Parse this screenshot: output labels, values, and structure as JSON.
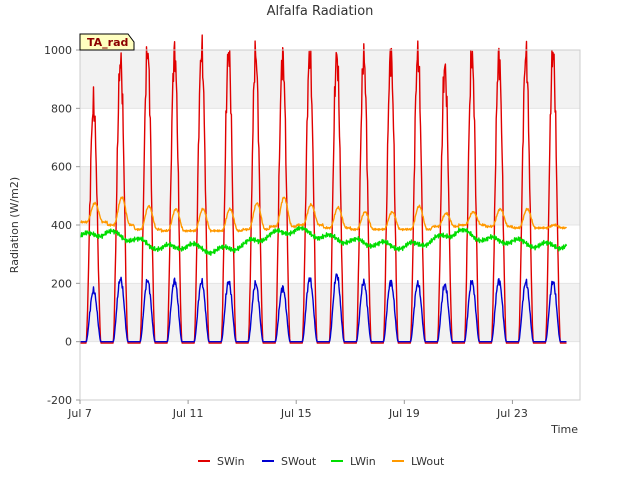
{
  "chart_data": {
    "type": "line",
    "title": "Alfalfa Radiation",
    "xlabel": "Time",
    "ylabel": "Radiation (W/m2)",
    "badge": "TA_rad",
    "xlim": [
      7.0,
      25.5
    ],
    "ylim": [
      -200,
      1000
    ],
    "yticks": [
      -200,
      0,
      200,
      400,
      600,
      800,
      1000
    ],
    "xticks": [
      {
        "day": 7,
        "label": "Jul 7"
      },
      {
        "day": 11,
        "label": "Jul 11"
      },
      {
        "day": 15,
        "label": "Jul 15"
      },
      {
        "day": 19,
        "label": "Jul 19"
      },
      {
        "day": 23,
        "label": "Jul 23"
      }
    ],
    "grid": true,
    "legend_position": "bottom",
    "days": [
      7.5,
      8.5,
      9.5,
      10.5,
      11.5,
      12.5,
      13.5,
      14.5,
      15.5,
      16.5,
      17.5,
      18.5,
      19.5,
      20.5,
      21.5,
      22.5,
      23.5,
      24.5
    ],
    "series": [
      {
        "name": "SWin",
        "color": "#e00000",
        "night": -5,
        "daily_peak": [
          810,
          960,
          995,
          990,
          995,
          990,
          985,
          975,
          975,
          980,
          975,
          980,
          985,
          940,
          975,
          975,
          985,
          990
        ]
      },
      {
        "name": "SWout",
        "color": "#0000d0",
        "night": 0,
        "daily_peak": [
          175,
          215,
          210,
          210,
          205,
          205,
          200,
          185,
          215,
          230,
          205,
          205,
          200,
          195,
          205,
          210,
          205,
          205
        ]
      },
      {
        "name": "LWin",
        "color": "#00dd00",
        "daily_mean": [
          360,
          375,
          350,
          320,
          330,
          310,
          330,
          365,
          385,
          360,
          345,
          335,
          325,
          345,
          380,
          350,
          345,
          330
        ]
      },
      {
        "name": "LWout",
        "color": "#ff9900",
        "daily_min": [
          410,
          400,
          385,
          380,
          380,
          380,
          385,
          395,
          400,
          390,
          385,
          385,
          385,
          395,
          400,
          395,
          390,
          390
        ],
        "daily_peak": [
          475,
          495,
          465,
          455,
          455,
          455,
          475,
          495,
          470,
          460,
          445,
          445,
          465,
          440,
          445,
          455,
          455,
          400
        ]
      }
    ]
  }
}
